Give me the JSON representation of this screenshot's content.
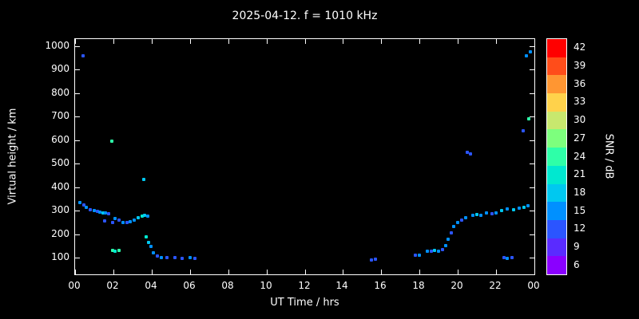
{
  "title": "2025-04-12. f = 1010 kHz",
  "axes": {
    "x_label": "UT Time / hrs",
    "y_label": "Virtual height / km",
    "colorbar_label": "SNR / dB"
  },
  "chart_data": {
    "type": "scatter",
    "title": "2025-04-12. f = 1010 kHz",
    "xlabel": "UT Time / hrs",
    "ylabel": "Virtual height / km",
    "xlim": [
      0,
      24
    ],
    "ylim": [
      30,
      1030
    ],
    "background": "#000000",
    "grid": false,
    "x_ticks": [
      {
        "value": 0,
        "label": "00"
      },
      {
        "value": 2,
        "label": "02"
      },
      {
        "value": 4,
        "label": "04"
      },
      {
        "value": 6,
        "label": "06"
      },
      {
        "value": 8,
        "label": "08"
      },
      {
        "value": 10,
        "label": "10"
      },
      {
        "value": 12,
        "label": "12"
      },
      {
        "value": 14,
        "label": "14"
      },
      {
        "value": 16,
        "label": "16"
      },
      {
        "value": 18,
        "label": "18"
      },
      {
        "value": 20,
        "label": "20"
      },
      {
        "value": 22,
        "label": "22"
      },
      {
        "value": 24,
        "label": "00"
      }
    ],
    "y_ticks": [
      100,
      200,
      300,
      400,
      500,
      600,
      700,
      800,
      900,
      1000
    ],
    "colorbar": {
      "label": "SNR / dB",
      "min": 4.5,
      "max": 43.5,
      "segments": [
        {
          "snr": 42,
          "color": "#ff0000"
        },
        {
          "snr": 39,
          "color": "#ff4d1a"
        },
        {
          "snr": 36,
          "color": "#ff9632"
        },
        {
          "snr": 33,
          "color": "#ffd24b"
        },
        {
          "snr": 30,
          "color": "#c8e86e"
        },
        {
          "snr": 27,
          "color": "#7dff7d"
        },
        {
          "snr": 24,
          "color": "#2effa8"
        },
        {
          "snr": 21,
          "color": "#00e8d0"
        },
        {
          "snr": 18,
          "color": "#00c8f0"
        },
        {
          "snr": 15,
          "color": "#0090ff"
        },
        {
          "snr": 12,
          "color": "#2b55ff"
        },
        {
          "snr": 9,
          "color": "#5a2bff"
        },
        {
          "snr": 6,
          "color": "#8a00ff"
        }
      ]
    },
    "points_format": [
      "ut_hour",
      "virtual_height_km",
      "snr_db"
    ],
    "points": [
      [
        0.4,
        960,
        12
      ],
      [
        0.25,
        335,
        15
      ],
      [
        0.45,
        325,
        12
      ],
      [
        0.6,
        315,
        15
      ],
      [
        0.8,
        305,
        12
      ],
      [
        1.0,
        300,
        15
      ],
      [
        1.15,
        298,
        12
      ],
      [
        1.3,
        295,
        15
      ],
      [
        1.45,
        292,
        18
      ],
      [
        1.6,
        290,
        15
      ],
      [
        1.75,
        288,
        12
      ],
      [
        1.9,
        595,
        24
      ],
      [
        1.55,
        258,
        12
      ],
      [
        1.95,
        252,
        12
      ],
      [
        2.1,
        268,
        15
      ],
      [
        2.3,
        262,
        12
      ],
      [
        2.5,
        252,
        15
      ],
      [
        2.7,
        250,
        12
      ],
      [
        2.9,
        255,
        15
      ],
      [
        1.95,
        132,
        24
      ],
      [
        2.1,
        130,
        21
      ],
      [
        2.3,
        132,
        24
      ],
      [
        3.1,
        262,
        15
      ],
      [
        3.3,
        272,
        18
      ],
      [
        3.5,
        278,
        21
      ],
      [
        3.65,
        282,
        18
      ],
      [
        3.8,
        278,
        15
      ],
      [
        3.6,
        432,
        18
      ],
      [
        3.7,
        188,
        21
      ],
      [
        3.85,
        165,
        18
      ],
      [
        3.95,
        150,
        15
      ],
      [
        4.1,
        122,
        15
      ],
      [
        4.3,
        108,
        12
      ],
      [
        4.5,
        102,
        15
      ],
      [
        4.8,
        100,
        12
      ],
      [
        5.2,
        100,
        12
      ],
      [
        5.6,
        98,
        12
      ],
      [
        6.0,
        100,
        15
      ],
      [
        6.25,
        98,
        12
      ],
      [
        15.5,
        92,
        12
      ],
      [
        15.7,
        95,
        12
      ],
      [
        17.8,
        110,
        12
      ],
      [
        18.0,
        112,
        15
      ],
      [
        18.4,
        130,
        15
      ],
      [
        18.6,
        128,
        12
      ],
      [
        18.8,
        132,
        18
      ],
      [
        19.0,
        130,
        15
      ],
      [
        19.2,
        135,
        12
      ],
      [
        19.35,
        152,
        15
      ],
      [
        19.5,
        180,
        15
      ],
      [
        19.65,
        205,
        12
      ],
      [
        19.8,
        232,
        15
      ],
      [
        20.0,
        252,
        15
      ],
      [
        20.2,
        262,
        12
      ],
      [
        20.5,
        548,
        12
      ],
      [
        20.65,
        542,
        12
      ],
      [
        20.4,
        272,
        15
      ],
      [
        20.8,
        280,
        15
      ],
      [
        21.0,
        285,
        18
      ],
      [
        21.2,
        282,
        15
      ],
      [
        21.5,
        290,
        15
      ],
      [
        21.8,
        286,
        12
      ],
      [
        22.0,
        292,
        15
      ],
      [
        22.3,
        300,
        18
      ],
      [
        22.6,
        308,
        15
      ],
      [
        22.9,
        305,
        18
      ],
      [
        22.4,
        100,
        12
      ],
      [
        22.6,
        98,
        15
      ],
      [
        22.85,
        100,
        12
      ],
      [
        23.2,
        312,
        15
      ],
      [
        23.45,
        316,
        18
      ],
      [
        23.65,
        320,
        15
      ],
      [
        23.4,
        640,
        12
      ],
      [
        23.7,
        692,
        24
      ],
      [
        23.6,
        958,
        15
      ],
      [
        23.8,
        975,
        15
      ]
    ]
  }
}
